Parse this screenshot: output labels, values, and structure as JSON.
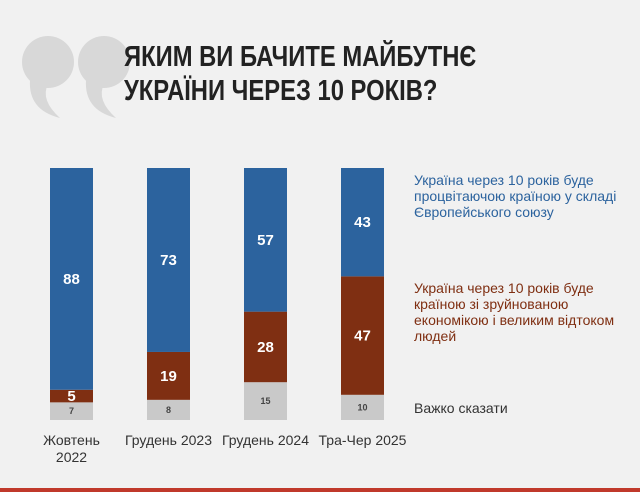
{
  "chart_data": {
    "type": "bar",
    "stacked": true,
    "title": "ЯКИМ ВИ БАЧИТЕ МАЙБУТНЄ УКРАЇНИ ЧЕРЕЗ 10 РОКІВ?",
    "categories": [
      "Жовтень 2022",
      "Грудень 2023",
      "Грудень 2024",
      "Тра-Чер 2025"
    ],
    "series": [
      {
        "name": "Україна через 10 років буде процвітаючою країною у складі Європейського союзу",
        "color": "#2c639e",
        "values": [
          88,
          73,
          57,
          43
        ]
      },
      {
        "name": "Україна через 10 років буде країною зі зруйнованою економікою і великим відтоком людей",
        "color": "#7f2f12",
        "values": [
          5,
          19,
          28,
          47
        ]
      },
      {
        "name": "Важко сказати",
        "color": "#c9c9c9",
        "values": [
          7,
          8,
          15,
          10
        ]
      }
    ]
  }
}
